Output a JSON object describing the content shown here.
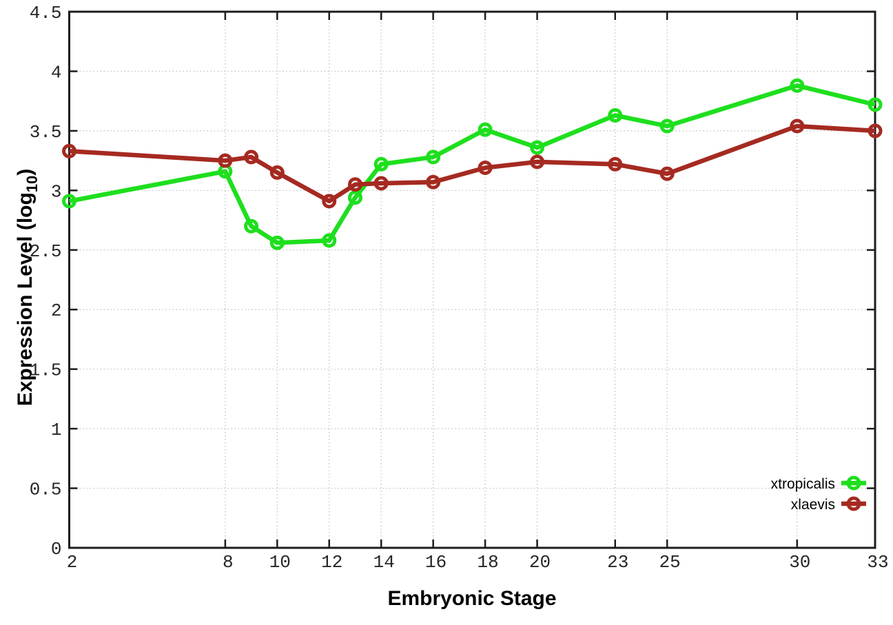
{
  "chart_data": {
    "type": "line",
    "xlabel": "Embryonic Stage",
    "ylabel": "Expression Level (log10)",
    "ylabel_parts": {
      "main": "Expression Level (log",
      "sub": "10",
      "end": ")"
    },
    "x": [
      2,
      8,
      9,
      10,
      12,
      13,
      14,
      16,
      18,
      20,
      23,
      25,
      30,
      33
    ],
    "series": [
      {
        "name": "xtropicalis",
        "color": "#1edf1e",
        "values": [
          2.91,
          3.16,
          2.7,
          2.56,
          2.58,
          2.94,
          3.22,
          3.28,
          3.51,
          3.36,
          3.63,
          3.54,
          3.88,
          3.72
        ]
      },
      {
        "name": "xlaevis",
        "color": "#a52a21",
        "values": [
          3.33,
          3.25,
          3.28,
          3.15,
          2.91,
          3.05,
          3.06,
          3.07,
          3.19,
          3.24,
          3.22,
          3.14,
          3.54,
          3.5
        ]
      }
    ],
    "xlim": [
      2,
      33
    ],
    "ylim": [
      0,
      4.5
    ],
    "xticks": [
      2,
      8,
      10,
      12,
      14,
      16,
      18,
      20,
      23,
      25,
      30,
      33
    ],
    "yticks": [
      0,
      0.5,
      1,
      1.5,
      2,
      2.5,
      3,
      3.5,
      4,
      4.5
    ],
    "ytick_labels": [
      "0",
      "0.5",
      "1",
      "1.5",
      "2",
      "2.5",
      "3",
      "3.5",
      "4",
      "4.5"
    ],
    "grid": true,
    "legend_position": "bottom-right",
    "marker": "open-circle"
  },
  "styles": {
    "background": "#ffffff",
    "grid_color": "#bdbdbd",
    "axis_color": "#1c1c1c",
    "tick_label_color": "#262626"
  }
}
